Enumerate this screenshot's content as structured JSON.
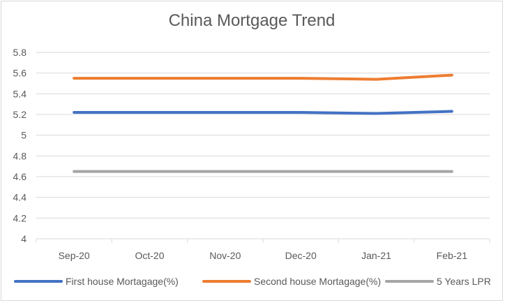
{
  "colors": {
    "first_house": "#4472C4",
    "second_house": "#ED7D31",
    "lpr": "#A5A5A5",
    "grid": "#d9d9d9",
    "text": "#595959"
  },
  "chart_data": {
    "type": "line",
    "title": "China Mortgage Trend",
    "xlabel": "",
    "ylabel": "",
    "categories": [
      "Sep-20",
      "Oct-20",
      "Nov-20",
      "Dec-20",
      "Jan-21",
      "Feb-21"
    ],
    "ylim": [
      4,
      5.8
    ],
    "yticks": [
      "4",
      "4.2",
      "4.4",
      "4.6",
      "4.8",
      "5",
      "5.2",
      "5.4",
      "5.6",
      "5.8"
    ],
    "grid": true,
    "legend_position": "bottom",
    "series": [
      {
        "name": "First house Mortagage(%)",
        "values": [
          5.22,
          5.22,
          5.22,
          5.22,
          5.21,
          5.23
        ]
      },
      {
        "name": "Second house Mortagage(%)",
        "values": [
          5.55,
          5.55,
          5.55,
          5.55,
          5.54,
          5.58
        ]
      },
      {
        "name": "5 Years LPR",
        "values": [
          4.65,
          4.65,
          4.65,
          4.65,
          4.65,
          4.65
        ]
      }
    ]
  }
}
